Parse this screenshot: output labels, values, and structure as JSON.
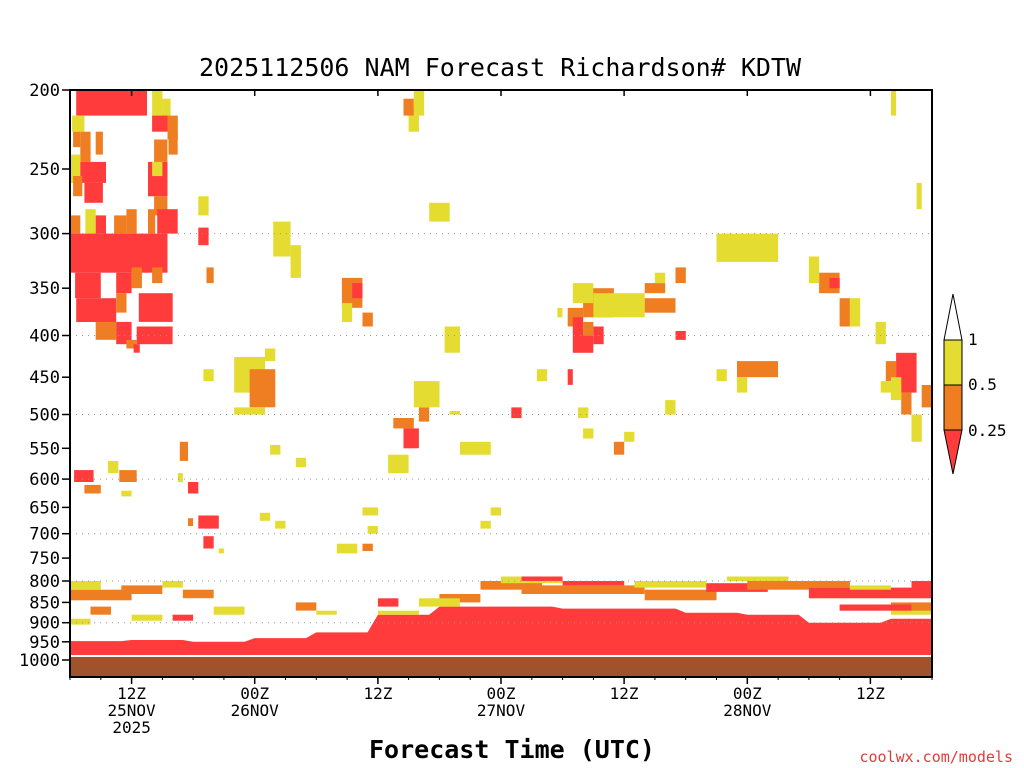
{
  "chart_data": {
    "type": "heatmap",
    "title": "2025112506 NAM Forecast Richardson# KDTW",
    "xlabel": "Forecast Time (UTC)",
    "ylabel": "",
    "y_axis": {
      "type": "log-pressure",
      "range": [
        200,
        1000
      ],
      "ticks": [
        200,
        250,
        300,
        350,
        400,
        450,
        500,
        550,
        600,
        650,
        700,
        750,
        800,
        850,
        900,
        950,
        1000
      ]
    },
    "x_axis": {
      "range_hours": [
        0,
        84
      ],
      "ticks": [
        {
          "hour": 6,
          "line1": "12Z",
          "line2": "25NOV",
          "line3": "2025"
        },
        {
          "hour": 18,
          "line1": "00Z",
          "line2": "26NOV",
          "line3": ""
        },
        {
          "hour": 30,
          "line1": "12Z",
          "line2": "",
          "line3": ""
        },
        {
          "hour": 42,
          "line1": "00Z",
          "line2": "27NOV",
          "line3": ""
        },
        {
          "hour": 54,
          "line1": "12Z",
          "line2": "",
          "line3": ""
        },
        {
          "hour": 66,
          "line1": "00Z",
          "line2": "28NOV",
          "line3": ""
        },
        {
          "hour": 78,
          "line1": "12Z",
          "line2": "",
          "line3": ""
        }
      ]
    },
    "legend": {
      "labels": [
        "1",
        "0.5",
        "0.25"
      ],
      "bins": [
        {
          "range": "< 0.25",
          "color": "#ff3b3b"
        },
        {
          "range": "0.25 - 0.5",
          "color": "#ef7d22"
        },
        {
          "range": "0.5 - 1",
          "color": "#e4dc30"
        },
        {
          "range": "> 1",
          "color": "#ffffff"
        }
      ]
    },
    "ground_color": "#a0522d",
    "cells": [
      [
        "R",
        0.6,
        7.5,
        200,
        215
      ],
      [
        "Y",
        8,
        9,
        200,
        215
      ],
      [
        "Y",
        9,
        9.8,
        205,
        220
      ],
      [
        "Y",
        0.2,
        1.4,
        215,
        225
      ],
      [
        "R",
        8,
        9.5,
        215,
        225
      ],
      [
        "O",
        9.5,
        10.5,
        215,
        230
      ],
      [
        "O",
        0.3,
        1,
        225,
        235
      ],
      [
        "O",
        1,
        2,
        225,
        245
      ],
      [
        "O",
        2.5,
        3.2,
        225,
        240
      ],
      [
        "O",
        8.2,
        9.5,
        230,
        245
      ],
      [
        "O",
        9.6,
        10.5,
        225,
        240
      ],
      [
        "Y",
        0,
        1,
        240,
        260
      ],
      [
        "R",
        1,
        3.5,
        245,
        260
      ],
      [
        "R",
        7.6,
        9.5,
        245,
        270
      ],
      [
        "Y",
        8,
        9,
        245,
        255
      ],
      [
        "O",
        0.3,
        1.2,
        255,
        270
      ],
      [
        "R",
        1.4,
        3.2,
        260,
        275
      ],
      [
        "O",
        8.2,
        9.5,
        270,
        285
      ],
      [
        "O",
        0,
        1,
        285,
        300
      ],
      [
        "Y",
        1.5,
        2.5,
        280,
        300
      ],
      [
        "R",
        2.5,
        3.5,
        285,
        300
      ],
      [
        "O",
        4.3,
        5.5,
        285,
        300
      ],
      [
        "O",
        5.5,
        6.5,
        280,
        300
      ],
      [
        "O",
        7.6,
        8.3,
        280,
        300
      ],
      [
        "R",
        8.5,
        10.5,
        280,
        300
      ],
      [
        "R",
        0,
        9.5,
        300,
        335
      ],
      [
        "R",
        0.5,
        3,
        335,
        360
      ],
      [
        "R",
        4.5,
        6,
        335,
        355
      ],
      [
        "O",
        6,
        7,
        330,
        350
      ],
      [
        "O",
        8,
        9,
        330,
        345
      ],
      [
        "R",
        0.6,
        4.5,
        360,
        385
      ],
      [
        "O",
        4.5,
        5.5,
        355,
        375
      ],
      [
        "R",
        6.7,
        10,
        355,
        385
      ],
      [
        "O",
        2.5,
        4.5,
        385,
        405
      ],
      [
        "R",
        4.5,
        6,
        385,
        410
      ],
      [
        "R",
        6.5,
        10,
        390,
        410
      ],
      [
        "O",
        5.5,
        6.5,
        405,
        415
      ],
      [
        "R",
        6.2,
        6.8,
        410,
        420
      ],
      [
        "R",
        12.5,
        13.5,
        295,
        310
      ],
      [
        "O",
        13.3,
        14,
        330,
        345
      ],
      [
        "Y",
        12.5,
        13.5,
        270,
        285
      ],
      [
        "Y",
        13,
        14,
        440,
        455
      ],
      [
        "Y",
        19.8,
        21.5,
        290,
        320
      ],
      [
        "Y",
        21.5,
        22.5,
        310,
        340
      ],
      [
        "O",
        26.5,
        28.5,
        340,
        370
      ],
      [
        "R",
        27.5,
        28.5,
        345,
        360
      ],
      [
        "Y",
        26.5,
        27.5,
        365,
        385
      ],
      [
        "O",
        28.5,
        29.5,
        375,
        390
      ],
      [
        "Y",
        33,
        34,
        210,
        225
      ],
      [
        "O",
        32.5,
        33.5,
        205,
        215
      ],
      [
        "Y",
        33.5,
        34.5,
        200,
        215
      ],
      [
        "Y",
        35,
        37,
        275,
        290
      ],
      [
        "Y",
        16,
        19,
        425,
        470
      ],
      [
        "Y",
        19,
        20,
        415,
        430
      ],
      [
        "O",
        17.5,
        20,
        440,
        490
      ],
      [
        "Y",
        16,
        19,
        490,
        500
      ],
      [
        "O",
        31.5,
        33.5,
        505,
        520
      ],
      [
        "R",
        32.5,
        34,
        520,
        550
      ],
      [
        "Y",
        33.5,
        36,
        455,
        490
      ],
      [
        "Y",
        31,
        33,
        560,
        590
      ],
      [
        "O",
        34,
        35,
        490,
        510
      ],
      [
        "Y",
        36.5,
        38,
        390,
        420
      ],
      [
        "Y",
        38,
        41,
        540,
        560
      ],
      [
        "R",
        43,
        44,
        490,
        505
      ],
      [
        "Y",
        47.5,
        48,
        370,
        380
      ],
      [
        "R",
        48.5,
        49,
        440,
        460
      ],
      [
        "Y",
        45.5,
        46.5,
        440,
        455
      ],
      [
        "O",
        48.5,
        50,
        370,
        390
      ],
      [
        "O",
        50,
        53,
        350,
        380
      ],
      [
        "R",
        49,
        50,
        380,
        400
      ],
      [
        "Y",
        49,
        51,
        345,
        365
      ],
      [
        "O",
        50,
        51,
        385,
        400
      ],
      [
        "Y",
        51,
        56,
        355,
        380
      ],
      [
        "O",
        56,
        59,
        360,
        375
      ],
      [
        "O",
        56,
        58,
        345,
        355
      ],
      [
        "R",
        51,
        52,
        390,
        410
      ],
      [
        "R",
        49,
        51,
        400,
        420
      ],
      [
        "Y",
        57,
        58,
        335,
        345
      ],
      [
        "O",
        59,
        60,
        330,
        345
      ],
      [
        "R",
        59,
        60,
        395,
        405
      ],
      [
        "Y",
        58,
        59,
        480,
        500
      ],
      [
        "Y",
        49.5,
        50.5,
        490,
        505
      ],
      [
        "Y",
        50,
        51,
        520,
        535
      ],
      [
        "O",
        53,
        54,
        540,
        560
      ],
      [
        "Y",
        54,
        55,
        525,
        540
      ],
      [
        "Y",
        63,
        69,
        300,
        325
      ],
      [
        "O",
        65,
        69,
        430,
        450
      ],
      [
        "Y",
        65,
        66,
        450,
        470
      ],
      [
        "Y",
        63,
        64,
        440,
        455
      ],
      [
        "O",
        73,
        75,
        335,
        355
      ],
      [
        "R",
        74,
        75,
        340,
        350
      ],
      [
        "O",
        75,
        76,
        360,
        390
      ],
      [
        "Y",
        72,
        73,
        320,
        345
      ],
      [
        "Y",
        76,
        77,
        360,
        390
      ],
      [
        "Y",
        78.5,
        79.5,
        385,
        410
      ],
      [
        "O",
        79.5,
        80.5,
        430,
        455
      ],
      [
        "R",
        80.5,
        82.5,
        420,
        470
      ],
      [
        "Y",
        79,
        80,
        455,
        470
      ],
      [
        "O",
        81,
        82,
        470,
        500
      ],
      [
        "Y",
        82,
        83,
        500,
        540
      ],
      [
        "Y",
        82.5,
        83,
        260,
        280
      ],
      [
        "Y",
        80,
        80.5,
        200,
        215
      ],
      [
        "Y",
        80,
        81,
        450,
        480
      ],
      [
        "O",
        83,
        84,
        460,
        490
      ],
      [
        "R",
        0.4,
        2.3,
        585,
        605
      ],
      [
        "O",
        1.4,
        3,
        610,
        625
      ],
      [
        "O",
        4.8,
        6.5,
        585,
        605
      ],
      [
        "Y",
        5,
        6,
        620,
        630
      ],
      [
        "Y",
        3.7,
        4.7,
        570,
        590
      ],
      [
        "O",
        10.7,
        11.5,
        540,
        570
      ],
      [
        "R",
        11.5,
        12.5,
        605,
        625
      ],
      [
        "Y",
        10.5,
        11,
        590,
        605
      ],
      [
        "R",
        12.5,
        14.5,
        665,
        690
      ],
      [
        "O",
        11.5,
        12,
        670,
        685
      ],
      [
        "R",
        13,
        14,
        705,
        730
      ],
      [
        "Y",
        14.5,
        15,
        730,
        740
      ],
      [
        "Y",
        18.5,
        19.5,
        660,
        675
      ],
      [
        "Y",
        20,
        21,
        675,
        690
      ],
      [
        "Y",
        19.5,
        20.5,
        545,
        560
      ],
      [
        "Y",
        22,
        23,
        565,
        580
      ],
      [
        "Y",
        28.5,
        30,
        650,
        665
      ],
      [
        "Y",
        29,
        30,
        685,
        700
      ],
      [
        "Y",
        26,
        28,
        720,
        740
      ],
      [
        "O",
        28.5,
        29.5,
        720,
        735
      ],
      [
        "Y",
        41,
        42,
        650,
        665
      ],
      [
        "Y",
        40,
        41,
        675,
        690
      ],
      [
        "Y",
        37,
        38,
        495,
        500
      ]
    ]
  },
  "credit": "coolwx.com/models"
}
